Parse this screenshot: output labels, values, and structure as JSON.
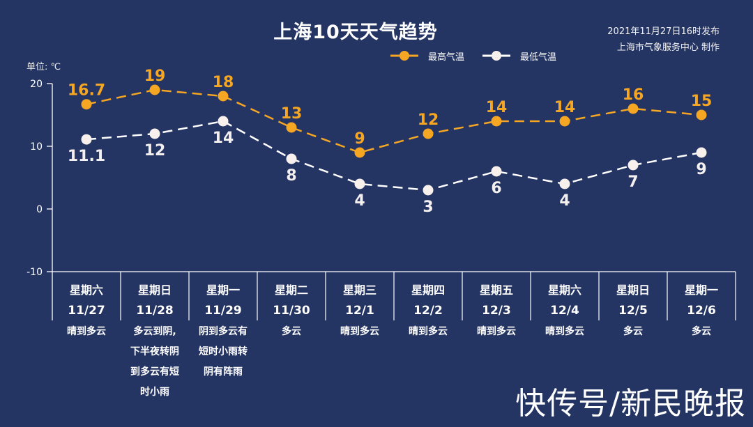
{
  "header": {
    "title": "上海10天天气趋势",
    "published": "2021年11月27日16时发布",
    "producer": "上海市气象服务中心 制作",
    "unit_label": "单位: ℃"
  },
  "legend": [
    {
      "label": "最高气温",
      "color": "#F5A623"
    },
    {
      "label": "最低气温",
      "color": "#FFFFFF"
    }
  ],
  "watermark": "快传号/新民晚报",
  "colors": {
    "background": "#243463",
    "high": "#F5A623",
    "low": "#FFFFFF",
    "axis": "#FFFFFF"
  },
  "chart_data": {
    "type": "line",
    "title": "上海10天天气趋势",
    "xlabel": "",
    "ylabel": "单位: ℃",
    "ylim": [
      -10,
      20
    ],
    "yticks": [
      20,
      10,
      0,
      -10
    ],
    "grid": false,
    "legend_position": "top-right",
    "categories": [
      "星期六 11/27",
      "星期日 11/28",
      "星期一 11/29",
      "星期二 11/30",
      "星期三 12/1",
      "星期四 12/2",
      "星期五 12/3",
      "星期六 12/4",
      "星期日 12/5",
      "星期一 12/6"
    ],
    "weekdays": [
      "星期六",
      "星期日",
      "星期一",
      "星期二",
      "星期三",
      "星期四",
      "星期五",
      "星期六",
      "星期日",
      "星期一"
    ],
    "dates": [
      "11/27",
      "11/28",
      "11/29",
      "11/30",
      "12/1",
      "12/2",
      "12/3",
      "12/4",
      "12/5",
      "12/6"
    ],
    "weather": [
      "晴到多云",
      "多云到阴,下半夜转阴到多云有短时小雨",
      "阴到多云有短时小雨转阴有阵雨",
      "多云",
      "晴到多云",
      "晴到多云",
      "晴到多云",
      "晴到多云",
      "多云",
      "多云"
    ],
    "weather_lines": [
      [
        "晴到多云"
      ],
      [
        "多云到阴,",
        "下半夜转阴",
        "到多云有短",
        "时小雨"
      ],
      [
        "阴到多云有",
        "短时小雨转",
        "阴有阵雨"
      ],
      [
        "多云"
      ],
      [
        "晴到多云"
      ],
      [
        "晴到多云"
      ],
      [
        "晴到多云"
      ],
      [
        "晴到多云"
      ],
      [
        "多云"
      ],
      [
        "多云"
      ]
    ],
    "series": [
      {
        "name": "最高气温",
        "values": [
          16.7,
          19,
          18,
          13,
          9,
          12,
          14,
          14,
          16,
          15
        ],
        "labels": [
          "16.7",
          "19",
          "18",
          "13",
          "9",
          "12",
          "14",
          "14",
          "16",
          "15"
        ]
      },
      {
        "name": "最低气温",
        "values": [
          11.1,
          12,
          14,
          8,
          4,
          3,
          6,
          4,
          7,
          9
        ],
        "labels": [
          "11.1",
          "12",
          "14",
          "8",
          "4",
          "3",
          "6",
          "4",
          "7",
          "9"
        ]
      }
    ]
  }
}
